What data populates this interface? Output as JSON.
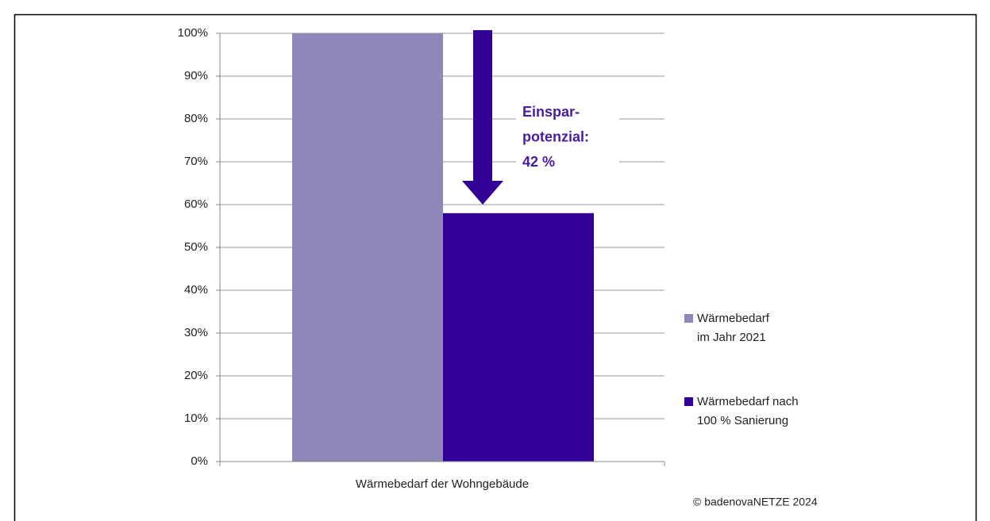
{
  "chart_data": {
    "type": "bar",
    "categories": [
      "Wärmebedarf der Wohngebäude"
    ],
    "series": [
      {
        "name": "Wärmebedarf\nim Jahr 2021",
        "color": "#8e87b8",
        "values": [
          100
        ]
      },
      {
        "name": "Wärmebedarf nach\n100 % Sanierung",
        "color": "#320096",
        "values": [
          58
        ]
      }
    ],
    "ylim": [
      0,
      100
    ],
    "yticks": [
      {
        "value": 0,
        "label": "0%"
      },
      {
        "value": 10,
        "label": "10%"
      },
      {
        "value": 20,
        "label": "20%"
      },
      {
        "value": 30,
        "label": "30%"
      },
      {
        "value": 40,
        "label": "40%"
      },
      {
        "value": 50,
        "label": "50%"
      },
      {
        "value": 60,
        "label": "60%"
      },
      {
        "value": 70,
        "label": "70%"
      },
      {
        "value": 80,
        "label": "80%"
      },
      {
        "value": 90,
        "label": "90%"
      },
      {
        "value": 100,
        "label": "100%"
      }
    ],
    "grid": true,
    "legend": "right",
    "annotation": [
      "Einspar-",
      "potenzial:",
      "42 %"
    ],
    "source": "© badenovaNETZE 2024"
  }
}
